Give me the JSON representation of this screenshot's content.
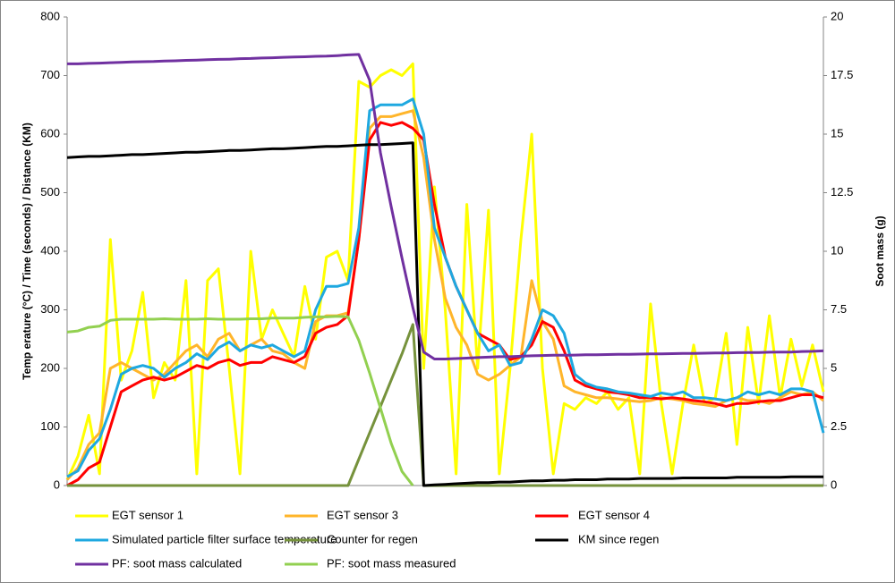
{
  "chart_data": {
    "type": "line",
    "y_label": "Temp erature (°C) / Time (seconds) / Distance (KM)",
    "y2_label": "Soot mass (g)",
    "ylim": [
      0,
      800
    ],
    "yticks": [
      0,
      100,
      200,
      300,
      400,
      500,
      600,
      700,
      800
    ],
    "y2lim": [
      0,
      20
    ],
    "y2ticks": [
      0,
      2.5,
      5,
      7.5,
      10,
      12.5,
      15,
      17.5,
      20
    ],
    "grid": false,
    "legend": "bottom",
    "categories": [
      null,
      null,
      null,
      null,
      null,
      null,
      null,
      null,
      null,
      null,
      null,
      null,
      null,
      null,
      null,
      null,
      null,
      null,
      null,
      null,
      null,
      null,
      null,
      null,
      null,
      null,
      null,
      null,
      null,
      null,
      null,
      null,
      null,
      null,
      null,
      null,
      null,
      null,
      null,
      null,
      null,
      null,
      null,
      null,
      null,
      null,
      null,
      null,
      null,
      null,
      null,
      null,
      null,
      null,
      null,
      null,
      null,
      null,
      null,
      null,
      null,
      null,
      null,
      null,
      null,
      null,
      null,
      null,
      null,
      null,
      null
    ],
    "series": [
      {
        "name": "EGT sensor 1",
        "color": "#ffff00",
        "values": [
          10,
          50,
          120,
          20,
          420,
          180,
          230,
          330,
          150,
          210,
          180,
          350,
          20,
          350,
          370,
          200,
          20,
          400,
          250,
          300,
          260,
          220,
          340,
          250,
          390,
          400,
          350,
          690,
          680,
          700,
          710,
          700,
          720,
          200,
          510,
          300,
          20,
          480,
          200,
          470,
          20,
          200,
          420,
          600,
          200,
          20,
          140,
          130,
          150,
          140,
          160,
          130,
          150,
          20,
          310,
          140,
          20,
          140,
          240,
          140,
          150,
          260,
          70,
          270,
          140,
          290,
          150,
          250,
          170,
          240,
          160
        ]
      },
      {
        "name": "EGT sensor 3",
        "color": "#ffb52a",
        "values": [
          10,
          30,
          70,
          90,
          200,
          210,
          200,
          190,
          180,
          190,
          210,
          230,
          240,
          220,
          250,
          260,
          230,
          240,
          250,
          230,
          225,
          210,
          200,
          280,
          290,
          290,
          295,
          420,
          610,
          630,
          630,
          635,
          640,
          560,
          420,
          320,
          270,
          240,
          190,
          180,
          190,
          205,
          220,
          350,
          280,
          250,
          170,
          160,
          155,
          150,
          150,
          148,
          145,
          143,
          145,
          150,
          148,
          145,
          140,
          138,
          135,
          145,
          150,
          145,
          145,
          140,
          150,
          160,
          155,
          160,
          145
        ]
      },
      {
        "name": "EGT sensor 4",
        "color": "#ff0000",
        "values": [
          0,
          10,
          30,
          40,
          100,
          160,
          170,
          180,
          185,
          180,
          185,
          195,
          205,
          200,
          210,
          215,
          205,
          210,
          210,
          220,
          215,
          210,
          220,
          260,
          270,
          275,
          290,
          420,
          590,
          620,
          615,
          620,
          610,
          590,
          480,
          390,
          340,
          300,
          260,
          250,
          240,
          215,
          220,
          240,
          280,
          270,
          230,
          180,
          170,
          165,
          160,
          158,
          155,
          150,
          150,
          148,
          150,
          148,
          145,
          143,
          140,
          135,
          140,
          140,
          143,
          145,
          145,
          150,
          155,
          155,
          150
        ]
      },
      {
        "name": "Simulated particle filter surface temperature",
        "color": "#1ea8e0",
        "values": [
          15,
          25,
          60,
          80,
          130,
          190,
          200,
          205,
          200,
          185,
          200,
          210,
          225,
          215,
          235,
          245,
          230,
          240,
          235,
          240,
          230,
          220,
          230,
          300,
          340,
          340,
          345,
          440,
          640,
          650,
          650,
          650,
          660,
          600,
          440,
          390,
          340,
          300,
          260,
          230,
          240,
          205,
          210,
          250,
          300,
          290,
          260,
          190,
          175,
          168,
          165,
          160,
          158,
          155,
          152,
          158,
          155,
          160,
          150,
          150,
          148,
          145,
          150,
          160,
          155,
          160,
          155,
          165,
          165,
          160,
          90
        ]
      },
      {
        "name": "Counter for regen",
        "color": "#76923c",
        "values": [
          0,
          0,
          0,
          0,
          0,
          0,
          0,
          0,
          0,
          0,
          0,
          0,
          0,
          0,
          0,
          0,
          0,
          0,
          0,
          0,
          0,
          0,
          0,
          0,
          0,
          0,
          0,
          45,
          90,
          135,
          180,
          225,
          275,
          0,
          0,
          0,
          0,
          0,
          0,
          0,
          0,
          0,
          0,
          0,
          0,
          0,
          0,
          0,
          0,
          0,
          0,
          0,
          0,
          0,
          0,
          0,
          0,
          0,
          0,
          0,
          0,
          0,
          0,
          0,
          0,
          0,
          0,
          0,
          0,
          0,
          0
        ]
      },
      {
        "name": "KM since regen",
        "color": "#000000",
        "values": [
          560,
          561,
          562,
          562,
          563,
          564,
          565,
          565,
          566,
          567,
          568,
          569,
          569,
          570,
          571,
          572,
          572,
          573,
          574,
          575,
          575,
          576,
          577,
          578,
          579,
          579,
          580,
          581,
          582,
          582,
          583,
          584,
          585,
          0,
          1,
          2,
          3,
          4,
          5,
          5,
          6,
          6,
          7,
          8,
          8,
          9,
          9,
          10,
          10,
          10,
          11,
          11,
          11,
          12,
          12,
          12,
          12,
          13,
          13,
          13,
          13,
          13,
          14,
          14,
          14,
          14,
          14,
          15,
          15,
          15,
          15
        ]
      },
      {
        "name": "PF: soot mass calculated",
        "color": "#7030a0",
        "axis": "y2",
        "values": [
          18.0,
          18.0,
          18.02,
          18.03,
          18.05,
          18.06,
          18.08,
          18.09,
          18.1,
          18.12,
          18.13,
          18.15,
          18.16,
          18.18,
          18.19,
          18.2,
          18.22,
          18.23,
          18.25,
          18.26,
          18.28,
          18.29,
          18.3,
          18.32,
          18.33,
          18.35,
          18.38,
          18.4,
          17.3,
          14.2,
          11.9,
          9.7,
          7.6,
          5.7,
          5.4,
          5.4,
          5.42,
          5.44,
          5.46,
          5.48,
          5.5,
          5.5,
          5.52,
          5.54,
          5.55,
          5.56,
          5.56,
          5.57,
          5.58,
          5.58,
          5.59,
          5.6,
          5.6,
          5.61,
          5.62,
          5.62,
          5.63,
          5.64,
          5.64,
          5.65,
          5.66,
          5.66,
          5.67,
          5.68,
          5.68,
          5.69,
          5.7,
          5.7,
          5.72,
          5.73,
          5.75
        ]
      },
      {
        "name": "PF: soot mass measured",
        "color": "#92d050",
        "axis": "y2",
        "values": [
          6.55,
          6.6,
          6.75,
          6.8,
          7.05,
          7.1,
          7.1,
          7.1,
          7.1,
          7.12,
          7.1,
          7.1,
          7.1,
          7.12,
          7.1,
          7.1,
          7.1,
          7.12,
          7.12,
          7.15,
          7.15,
          7.15,
          7.18,
          7.2,
          7.2,
          7.22,
          7.2,
          6.2,
          4.8,
          3.3,
          1.8,
          0.6,
          0,
          null,
          null,
          null,
          null,
          null,
          null,
          null,
          null,
          null,
          null,
          null,
          null,
          null,
          null,
          null,
          null,
          null,
          null,
          null,
          null,
          null,
          null,
          null,
          null,
          null,
          null,
          null,
          null,
          null,
          null,
          null,
          null,
          null,
          null,
          null,
          null,
          null,
          null
        ]
      }
    ]
  }
}
